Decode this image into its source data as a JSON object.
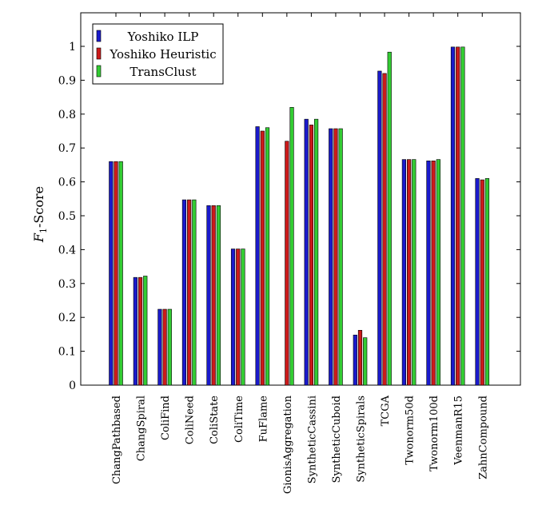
{
  "chart_data": {
    "type": "bar",
    "title": "",
    "xlabel": "",
    "ylabel_main": "F",
    "ylabel_sub": "1",
    "ylabel_rest": "-Score",
    "ylim": [
      0,
      1.1
    ],
    "yticks": [
      "0",
      "0.1",
      "0.2",
      "0.3",
      "0.4",
      "0.5",
      "0.6",
      "0.7",
      "0.8",
      "0.9",
      "1"
    ],
    "grid": false,
    "legend_position": "top-left",
    "categories": [
      "ChangPathbased",
      "ChangSpiral",
      "ColiFind",
      "ColiNeed",
      "ColiState",
      "ColiTime",
      "FuFlame",
      "GionisAggregation",
      "SyntheticCassini",
      "SyntheticCuboid",
      "SyntheticSpirals",
      "TCGA",
      "Twonorm50d",
      "Twonorm100d",
      "VeenmanR15",
      "ZahnCompound"
    ],
    "series": [
      {
        "name": "Yoshiko ILP",
        "color": "#1a1acc",
        "values": [
          0.66,
          0.318,
          0.224,
          0.547,
          0.53,
          0.402,
          0.763,
          null,
          0.785,
          0.757,
          0.148,
          0.927,
          0.666,
          0.662,
          0.998,
          0.61
        ]
      },
      {
        "name": "Yoshiko Heuristic",
        "color": "#cc1a1a",
        "values": [
          0.66,
          0.318,
          0.224,
          0.547,
          0.53,
          0.402,
          0.75,
          0.72,
          0.768,
          0.757,
          0.162,
          0.92,
          0.666,
          0.662,
          0.998,
          0.606
        ]
      },
      {
        "name": "TransClust",
        "color": "#33cc33",
        "values": [
          0.66,
          0.322,
          0.224,
          0.547,
          0.53,
          0.402,
          0.76,
          0.82,
          0.785,
          0.757,
          0.14,
          0.983,
          0.666,
          0.666,
          0.998,
          0.61
        ]
      }
    ]
  }
}
